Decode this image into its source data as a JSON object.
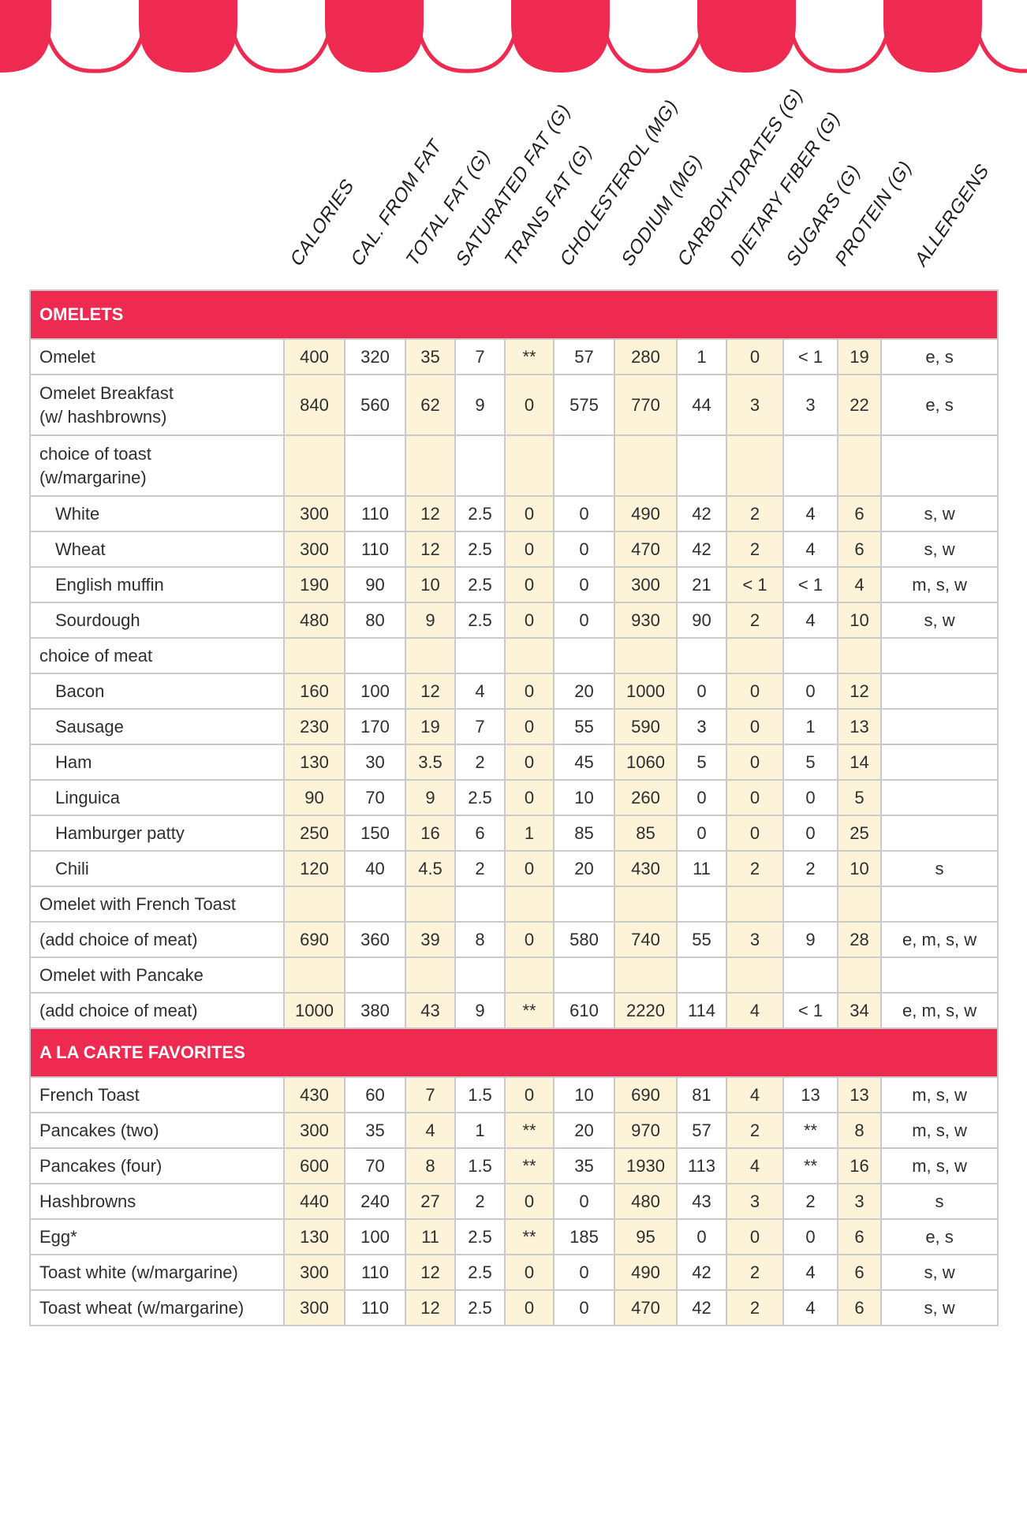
{
  "colors": {
    "brand_red": "#ee2a50",
    "column_shade": "#fdf3d8",
    "grid": "#cacaca"
  },
  "columns": [
    "CALORIES",
    "CAL. FROM FAT",
    "TOTAL FAT (G)",
    "SATURATED FAT (G)",
    "TRANS FAT (G)",
    "CHOLESTEROL (MG)",
    "SODIUM (MG)",
    "CARBOHYDRATES (G)",
    "DIETARY FIBER (G)",
    "SUGARS (G)",
    "PROTEIN (G)",
    "ALLERGENS"
  ],
  "sections": [
    {
      "title": "OMELETS",
      "rows": [
        {
          "name": "Omelet",
          "values": [
            "400",
            "320",
            "35",
            "7",
            "**",
            "57",
            "280",
            "1",
            "0",
            "< 1",
            "19",
            "e, s"
          ]
        },
        {
          "name": "Omelet Breakfast\n(w/ hashbrowns)",
          "tall": true,
          "values": [
            "840",
            "560",
            "62",
            "9",
            "0",
            "575",
            "770",
            "44",
            "3",
            "3",
            "22",
            "e, s"
          ]
        },
        {
          "name": "choice of toast\n(w/margarine)",
          "tall": true,
          "values": []
        },
        {
          "name": "White",
          "indent": true,
          "values": [
            "300",
            "110",
            "12",
            "2.5",
            "0",
            "0",
            "490",
            "42",
            "2",
            "4",
            "6",
            "s, w"
          ]
        },
        {
          "name": "Wheat",
          "indent": true,
          "values": [
            "300",
            "110",
            "12",
            "2.5",
            "0",
            "0",
            "470",
            "42",
            "2",
            "4",
            "6",
            "s, w"
          ]
        },
        {
          "name": "English muffin",
          "indent": true,
          "values": [
            "190",
            "90",
            "10",
            "2.5",
            "0",
            "0",
            "300",
            "21",
            "< 1",
            "< 1",
            "4",
            "m, s, w"
          ]
        },
        {
          "name": "Sourdough",
          "indent": true,
          "values": [
            "480",
            "80",
            "9",
            "2.5",
            "0",
            "0",
            "930",
            "90",
            "2",
            "4",
            "10",
            "s, w"
          ]
        },
        {
          "name": "choice of meat",
          "values": []
        },
        {
          "name": "Bacon",
          "indent": true,
          "values": [
            "160",
            "100",
            "12",
            "4",
            "0",
            "20",
            "1000",
            "0",
            "0",
            "0",
            "12",
            ""
          ]
        },
        {
          "name": "Sausage",
          "indent": true,
          "values": [
            "230",
            "170",
            "19",
            "7",
            "0",
            "55",
            "590",
            "3",
            "0",
            "1",
            "13",
            ""
          ]
        },
        {
          "name": "Ham",
          "indent": true,
          "values": [
            "130",
            "30",
            "3.5",
            "2",
            "0",
            "45",
            "1060",
            "5",
            "0",
            "5",
            "14",
            ""
          ]
        },
        {
          "name": "Linguica",
          "indent": true,
          "values": [
            "90",
            "70",
            "9",
            "2.5",
            "0",
            "10",
            "260",
            "0",
            "0",
            "0",
            "5",
            ""
          ]
        },
        {
          "name": "Hamburger patty",
          "indent": true,
          "values": [
            "250",
            "150",
            "16",
            "6",
            "1",
            "85",
            "85",
            "0",
            "0",
            "0",
            "25",
            ""
          ]
        },
        {
          "name": "Chili",
          "indent": true,
          "values": [
            "120",
            "40",
            "4.5",
            "2",
            "0",
            "20",
            "430",
            "11",
            "2",
            "2",
            "10",
            "s"
          ]
        },
        {
          "name": "Omelet with French Toast",
          "values": []
        },
        {
          "name": "(add choice of meat)",
          "values": [
            "690",
            "360",
            "39",
            "8",
            "0",
            "580",
            "740",
            "55",
            "3",
            "9",
            "28",
            "e, m, s, w"
          ]
        },
        {
          "name": "Omelet with Pancake",
          "values": []
        },
        {
          "name": "(add choice of meat)",
          "values": [
            "1000",
            "380",
            "43",
            "9",
            "**",
            "610",
            "2220",
            "114",
            "4",
            "< 1",
            "34",
            "e, m, s, w"
          ]
        }
      ]
    },
    {
      "title": "A LA CARTE FAVORITES",
      "rows": [
        {
          "name": "French Toast",
          "values": [
            "430",
            "60",
            "7",
            "1.5",
            "0",
            "10",
            "690",
            "81",
            "4",
            "13",
            "13",
            "m, s, w"
          ]
        },
        {
          "name": "Pancakes (two)",
          "values": [
            "300",
            "35",
            "4",
            "1",
            "**",
            "20",
            "970",
            "57",
            "2",
            "**",
            "8",
            "m, s, w"
          ]
        },
        {
          "name": "Pancakes (four)",
          "values": [
            "600",
            "70",
            "8",
            "1.5",
            "**",
            "35",
            "1930",
            "113",
            "4",
            "**",
            "16",
            "m, s, w"
          ]
        },
        {
          "name": "Hashbrowns",
          "values": [
            "440",
            "240",
            "27",
            "2",
            "0",
            "0",
            "480",
            "43",
            "3",
            "2",
            "3",
            "s"
          ]
        },
        {
          "name": "Egg*",
          "values": [
            "130",
            "100",
            "11",
            "2.5",
            "**",
            "185",
            "95",
            "0",
            "0",
            "0",
            "6",
            "e, s"
          ]
        },
        {
          "name": "Toast white (w/margarine)",
          "values": [
            "300",
            "110",
            "12",
            "2.5",
            "0",
            "0",
            "490",
            "42",
            "2",
            "4",
            "6",
            "s, w"
          ]
        },
        {
          "name": "Toast wheat (w/margarine)",
          "values": [
            "300",
            "110",
            "12",
            "2.5",
            "0",
            "0",
            "470",
            "42",
            "2",
            "4",
            "6",
            "s, w"
          ]
        }
      ]
    }
  ]
}
